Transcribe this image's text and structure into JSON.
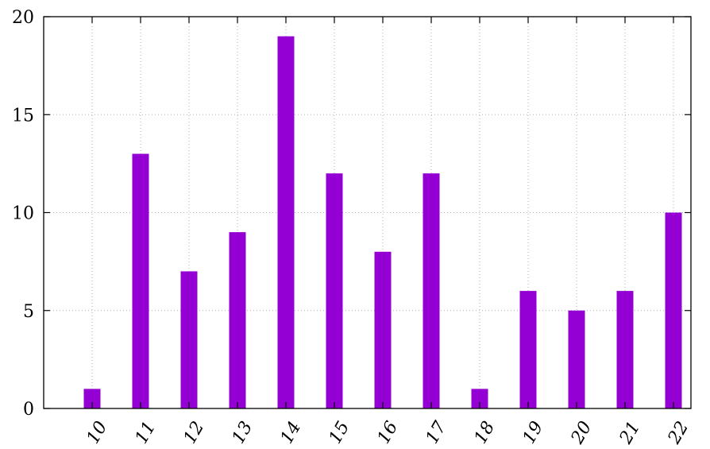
{
  "chart_data": {
    "type": "bar",
    "title": "",
    "xlabel": "",
    "ylabel": "",
    "categories": [
      "10",
      "11",
      "12",
      "13",
      "14",
      "15",
      "16",
      "17",
      "18",
      "19",
      "20",
      "21",
      "22"
    ],
    "values": [
      1,
      13,
      7,
      9,
      19,
      12,
      8,
      12,
      1,
      6,
      5,
      6,
      10
    ],
    "ylim": [
      0,
      20
    ],
    "yticks": [
      0,
      5,
      10,
      15,
      20
    ],
    "grid": true,
    "bar_color": "#9400d3",
    "legend": "none"
  }
}
